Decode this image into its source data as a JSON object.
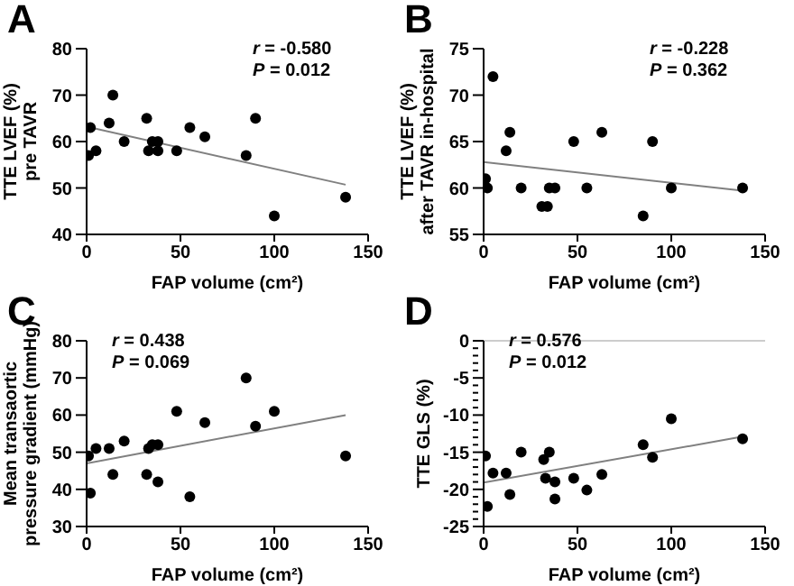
{
  "chart_data": [
    {
      "type": "scatter",
      "title": "A",
      "xlabel": "FAP volume (cm²)",
      "ylabel": "TTE LVEF  (%)\npre TAVR",
      "xlim": [
        0,
        150
      ],
      "xticks": [
        0,
        50,
        100,
        150
      ],
      "ylim": [
        40,
        80
      ],
      "yticks": [
        40,
        50,
        60,
        70,
        80
      ],
      "marker": "circle",
      "annotations": [
        "r = -0.580",
        "P = 0.012"
      ],
      "series": [
        {
          "color": "#000000",
          "x": [
            1,
            2,
            5,
            12,
            14,
            20,
            32,
            33,
            35,
            38,
            38,
            48,
            55,
            63,
            85,
            90,
            100,
            138
          ],
          "values": [
            57,
            63,
            58,
            64,
            70,
            60,
            65,
            58,
            60,
            60,
            58,
            58,
            63,
            61,
            57,
            65,
            44,
            48
          ]
        },
        {
          "type": "line",
          "marker": "none",
          "color": "#808080",
          "x": [
            0,
            138
          ],
          "values": [
            63.2,
            50.7
          ]
        }
      ]
    },
    {
      "type": "scatter",
      "title": "B",
      "xlabel": "FAP volume (cm²)",
      "ylabel": "TTE LVEF (%)\nafter TAVR in-hospital",
      "xlim": [
        0,
        150
      ],
      "xticks": [
        0,
        50,
        100,
        150
      ],
      "ylim": [
        55,
        75
      ],
      "yticks": [
        55,
        60,
        65,
        70,
        75
      ],
      "marker": "circle",
      "annotations": [
        "r = -0.228",
        "P = 0.362"
      ],
      "series": [
        {
          "color": "#000000",
          "x": [
            1,
            2,
            5,
            12,
            14,
            20,
            31,
            34,
            35,
            38,
            48,
            55,
            63,
            85,
            90,
            100,
            138
          ],
          "values": [
            61,
            60,
            72,
            64,
            66,
            60,
            58,
            58,
            60,
            60,
            65,
            60,
            66,
            57,
            65,
            60,
            60
          ]
        },
        {
          "type": "line",
          "marker": "none",
          "color": "#808080",
          "x": [
            0,
            138
          ],
          "values": [
            62.8,
            59.7
          ]
        }
      ]
    },
    {
      "type": "scatter",
      "title": "C",
      "xlabel": "FAP volume (cm²)",
      "ylabel": "Mean transaortic\npressure gradient (mmHg)",
      "xlim": [
        0,
        150
      ],
      "xticks": [
        0,
        50,
        100,
        150
      ],
      "ylim": [
        30,
        80
      ],
      "yticks": [
        30,
        40,
        50,
        60,
        70,
        80
      ],
      "marker": "circle",
      "annotations": [
        "r = 0.438",
        "P = 0.069"
      ],
      "series": [
        {
          "color": "#000000",
          "x": [
            1,
            2,
            5,
            12,
            14,
            20,
            32,
            33,
            35,
            38,
            38,
            48,
            55,
            63,
            85,
            90,
            100,
            138
          ],
          "values": [
            49,
            39,
            51,
            51,
            44,
            53,
            44,
            51,
            52,
            52,
            42,
            61,
            38,
            58,
            70,
            57,
            61,
            49
          ]
        },
        {
          "type": "line",
          "marker": "none",
          "color": "#808080",
          "x": [
            0,
            138
          ],
          "values": [
            47,
            60
          ]
        }
      ]
    },
    {
      "type": "scatter",
      "title": "D",
      "xlabel": "FAP volume (cm²)",
      "ylabel": "TTE GLS (%)",
      "xlim": [
        0,
        150
      ],
      "xticks": [
        0,
        50,
        100,
        150
      ],
      "ylim": [
        -25,
        0
      ],
      "yticks": [
        -25,
        {
          "value": -24,
          "label": null
        },
        {
          "value": -23,
          "label": null
        },
        {
          "value": -22,
          "label": null
        },
        {
          "value": -21,
          "label": null
        },
        -20,
        {
          "value": -19,
          "label": null
        },
        {
          "value": -18,
          "label": null
        },
        {
          "value": -17,
          "label": null
        },
        {
          "value": -16,
          "label": null
        },
        -15,
        {
          "value": -14,
          "label": null
        },
        {
          "value": -13,
          "label": null
        },
        {
          "value": -12,
          "label": null
        },
        {
          "value": -11,
          "label": null
        },
        -10,
        {
          "value": -9,
          "label": null
        },
        {
          "value": -8,
          "label": null
        },
        {
          "value": -7,
          "label": null
        },
        {
          "value": -6,
          "label": null
        },
        -5,
        {
          "value": -4,
          "label": null
        },
        {
          "value": -3,
          "label": null
        },
        {
          "value": -2,
          "label": null
        },
        {
          "value": -1,
          "label": null
        },
        0
      ],
      "marker": "circle",
      "annotations": [
        "r = 0.576",
        "P = 0.012"
      ],
      "ref_lines": [
        {
          "axis": "y",
          "value": 0,
          "color": "#cccccc"
        }
      ],
      "series": [
        {
          "color": "#000000",
          "x": [
            1,
            2,
            5,
            12,
            14,
            20,
            32,
            33,
            35,
            38,
            38,
            48,
            55,
            63,
            85,
            90,
            100,
            138
          ],
          "values": [
            -15.5,
            -22.3,
            -17.8,
            -17.8,
            -20.7,
            -15,
            -16,
            -18.5,
            -15,
            -19,
            -21.3,
            -18.5,
            -20.1,
            -18,
            -14,
            -15.7,
            -10.5,
            -13.2
          ]
        },
        {
          "type": "line",
          "marker": "none",
          "color": "#808080",
          "x": [
            0,
            138
          ],
          "values": [
            -19.1,
            -12.9
          ]
        }
      ]
    }
  ]
}
